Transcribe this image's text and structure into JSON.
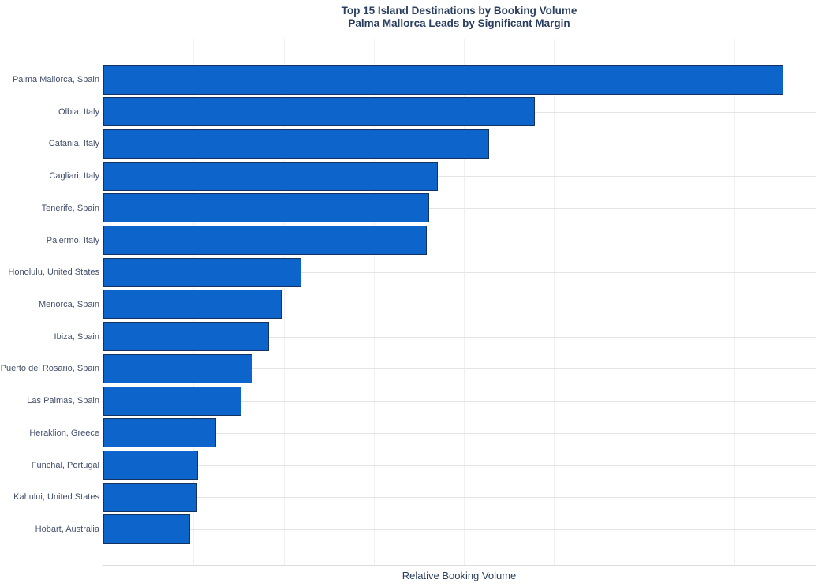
{
  "chart": {
    "title_line1": "Top 15 Island Destinations by Booking Volume",
    "title_line2": "Palma Mallorca Leads by Significant Margin",
    "xlabel": "Relative Booking Volume"
  },
  "colors": {
    "bar_fill": "#0d65cc",
    "bar_border": "#14335e",
    "title_text": "#2a3f5f",
    "tick_text": "#42506b",
    "axis_line": "#d0d0d0",
    "vertical_gridline": "#f0f0f0",
    "horizontal_rowline": "#e4e4e4",
    "background": "#ffffff"
  },
  "chart_data": {
    "type": "bar",
    "orientation": "horizontal",
    "title": "Top 15 Island Destinations by Booking Volume",
    "subtitle": "Palma Mallorca Leads by Significant Margin",
    "xlabel": "Relative Booking Volume",
    "ylabel": "",
    "categories": [
      "Palma Mallorca, Spain",
      "Olbia, Italy",
      "Catania, Italy",
      "Cagliari, Italy",
      "Tenerife, Spain",
      "Palermo, Italy",
      "Honolulu, United States",
      "Menorca, Spain",
      "Ibiza, Spain",
      "Puerto del Rosario, Spain",
      "Las Palmas, Spain",
      "Heraklion, Greece",
      "Funchal, Portugal",
      "Kahului, United States",
      "Hobart, Australia"
    ],
    "values": [
      95.4,
      60.5,
      54.1,
      46.9,
      45.7,
      45.4,
      27.8,
      25.0,
      23.2,
      20.9,
      19.4,
      15.8,
      13.3,
      13.2,
      12.2
    ],
    "value_scale": "relative booking volume, unlabeled axis; values given as percent of x-axis span (max bar = 95.4)",
    "xlim": [
      0,
      100
    ],
    "grid": "vertical gridlines on, no tick labels; light horizontal line at each category center",
    "gridline_positions_pct": [
      12.6,
      25.3,
      37.9,
      50.6,
      63.2,
      75.9,
      88.5
    ],
    "legend": "none",
    "bars_sorted": "descending, largest at top"
  }
}
